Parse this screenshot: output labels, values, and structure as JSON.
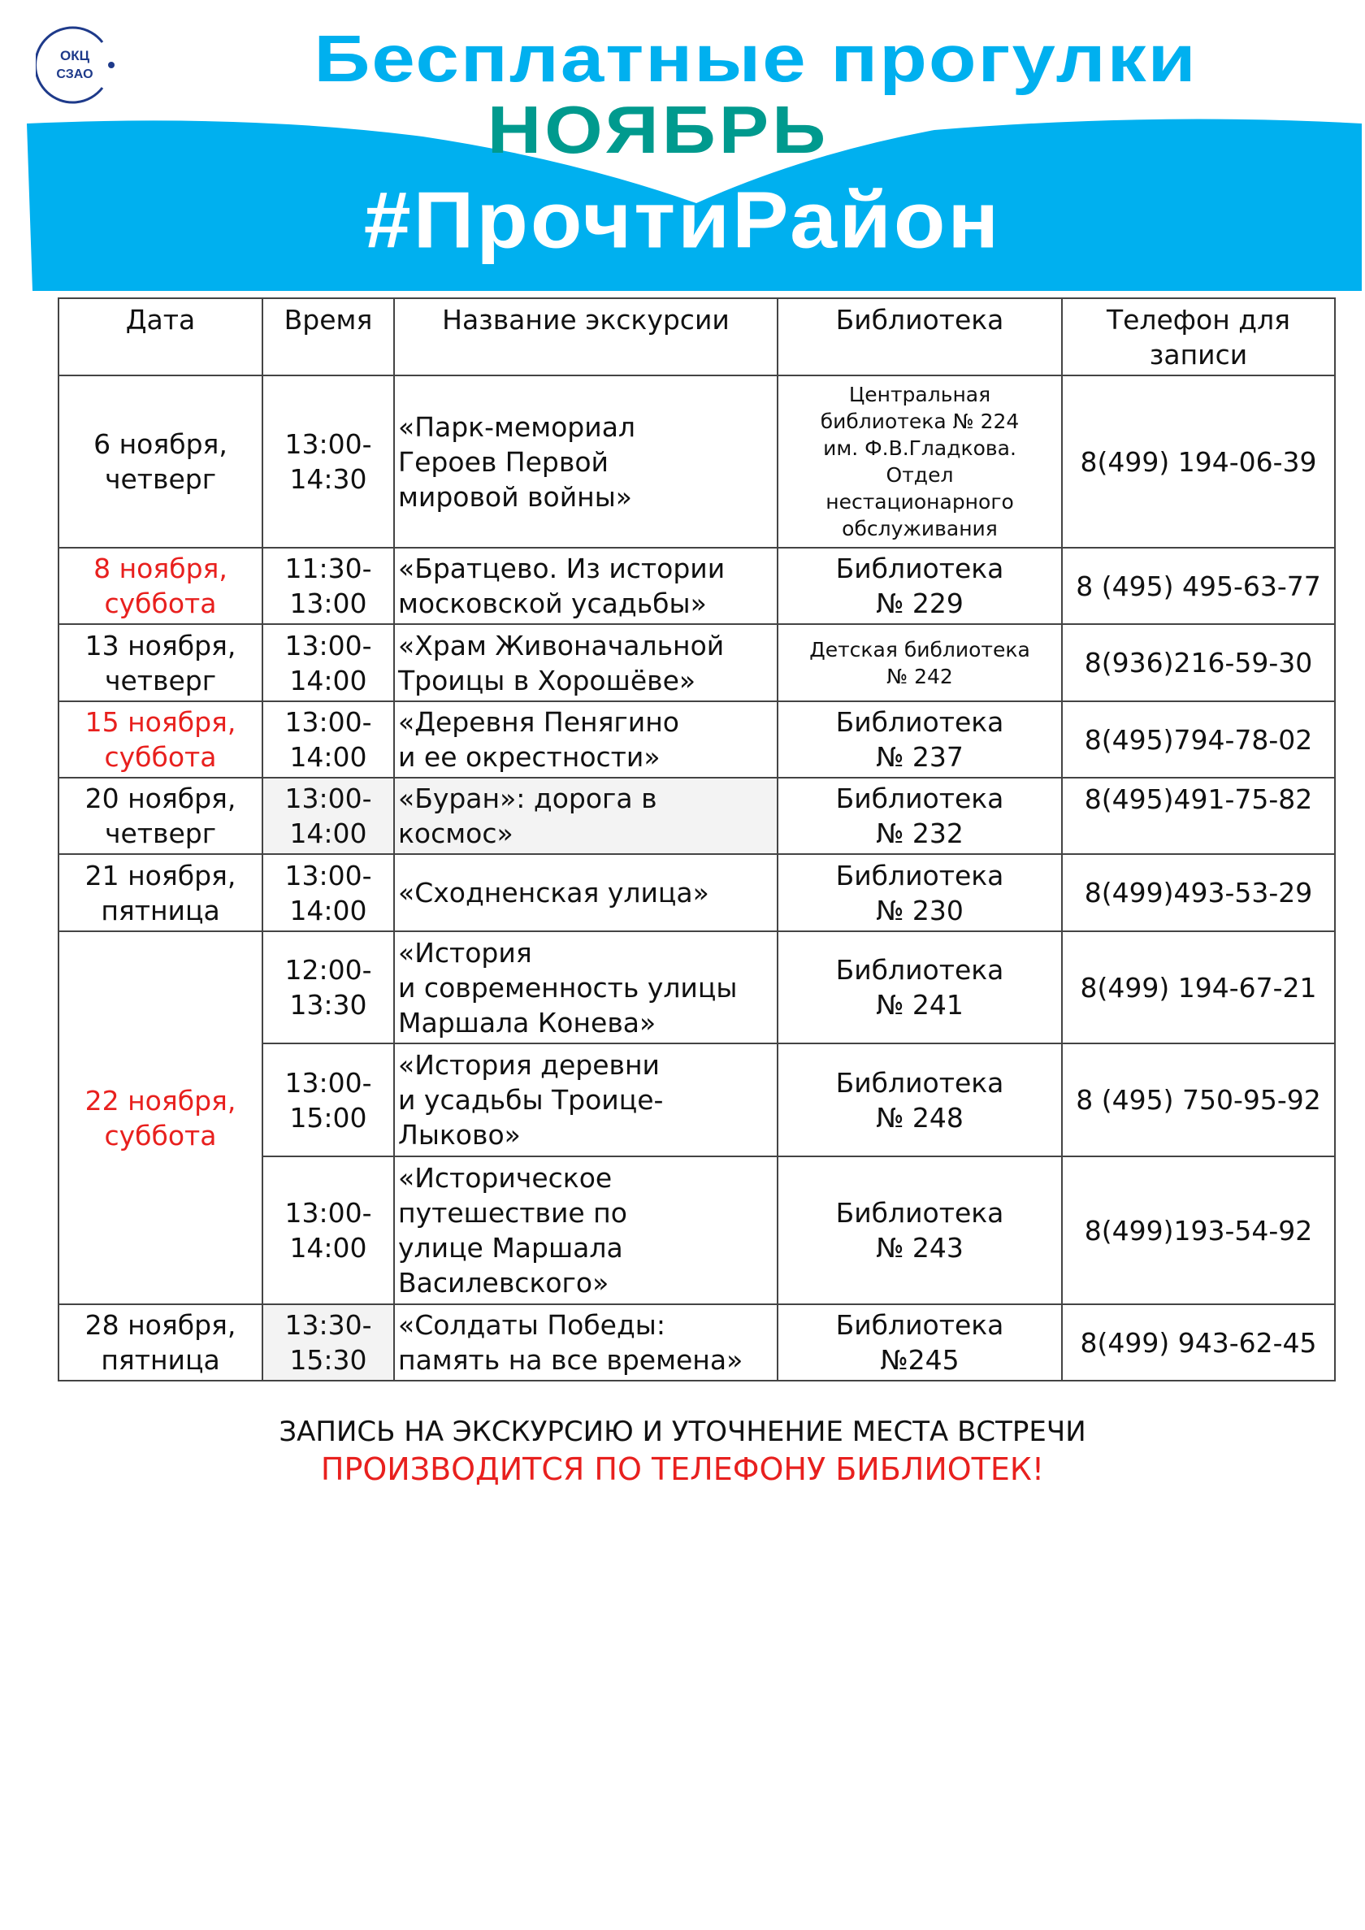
{
  "logo": {
    "line1": "ОКЦ",
    "line2": "СЗАО"
  },
  "header": {
    "title": "Бесплатные прогулки",
    "month": "НОЯБРЬ",
    "hashtag": "#ПрочтиРайон"
  },
  "colors": {
    "blue": "#00b0ef",
    "teal": "#009a8e",
    "red": "#e8201e",
    "logo": "#1e3a8a"
  },
  "table": {
    "columns": [
      "Дата",
      "Время",
      "Название экскурсии",
      "Библиотека",
      "Телефон для\nзаписи"
    ],
    "rows": [
      {
        "date": "6 ноября,\nчетверг",
        "time": "13:00-\n14:30",
        "name": "«Парк-мемориал\nГероев Первой\nмировой войны»",
        "library": "Центральная\nбиблиотека № 224\nим. Ф.В.Гладкова.\nОтдел\nнестационарного\nобслуживания",
        "phone": "8(499) 194-06-39"
      },
      {
        "date": "8 ноября,\nсуббота",
        "time": "11:30-\n13:00",
        "name": "«Братцево. Из истории\nмосковской усадьбы»",
        "library": "Библиотека\n№ 229",
        "phone": "8 (495) 495-63-77"
      },
      {
        "date": "13 ноября,\nчетверг",
        "time": "13:00-\n14:00",
        "name": "«Храм Живоначальной\nТроицы в Хорошёве»",
        "library": "Детская библиотека\n№ 242",
        "phone": "8(936)216-59-30"
      },
      {
        "date": "15 ноября,\nсуббота",
        "time": "13:00-\n14:00",
        "name": "«Деревня Пенягино\nи ее окрестности»",
        "library": "Библиотека\n№ 237",
        "phone": "8(495)794-78-02"
      },
      {
        "date": "20 ноября,\nчетверг",
        "time": "13:00-\n14:00",
        "name": " «Буран»: дорога в\nкосмос»",
        "library": "Библиотека\n№ 232",
        "phone": "8(495)491-75-82"
      },
      {
        "date": "21 ноября,\nпятница",
        "time": "13:00-\n14:00",
        "name": "«Сходненская улица»",
        "library": "Библиотека\n№ 230",
        "phone": "8(499)493-53-29"
      },
      {
        "date": "22 ноября,\nсуббота",
        "time": "12:00-\n13:30",
        "name": "«История\nи современность улицы\nМаршала Конева»",
        "library": "Библиотека\n№ 241",
        "phone": "8(499) 194-67-21"
      },
      {
        "time": "13:00-\n15:00",
        "name": "«История деревни\nи усадьбы Троице-\nЛыково»",
        "library": "Библиотека\n№ 248",
        "phone": "8 (495) 750-95-92"
      },
      {
        "time": "13:00-\n14:00",
        "name": "«Историческое\nпутешествие по\nулице Маршала\nВасилевского»",
        "library": "Библиотека\n№ 243",
        "phone": "8(499)193-54-92"
      },
      {
        "date": "28 ноября,\nпятница",
        "time": "13:30-\n15:30",
        "name": "«Солдаты Победы:\nпамять на все времена»",
        "library": "Библиотека\n№245",
        "phone": "8(499) 943-62-45"
      }
    ]
  },
  "footer": {
    "line1": "ЗАПИСЬ НА ЭКСКУРСИЮ И УТОЧНЕНИЕ МЕСТА ВСТРЕЧИ",
    "line2": "ПРОИЗВОДИТСЯ ПО ТЕЛЕФОНУ БИБЛИОТЕК!"
  }
}
